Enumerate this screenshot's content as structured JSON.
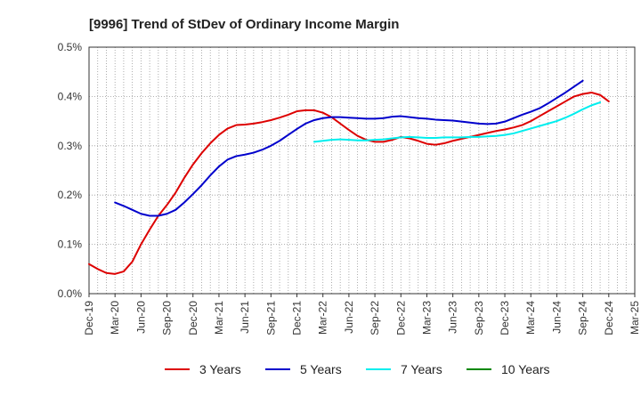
{
  "chart_data": {
    "type": "line",
    "title": "[9996]  Trend of StDev of Ordinary Income Margin",
    "xlabel": "",
    "ylabel": "",
    "ylim": [
      0,
      0.5
    ],
    "y_ticks": [
      0,
      0.1,
      0.2,
      0.3,
      0.4,
      0.5
    ],
    "y_tick_labels": [
      "0.0%",
      "0.1%",
      "0.2%",
      "0.3%",
      "0.4%",
      "0.5%"
    ],
    "x_tick_labels": [
      "Dec-19",
      "Mar-20",
      "Jun-20",
      "Sep-20",
      "Dec-20",
      "Mar-21",
      "Jun-21",
      "Sep-21",
      "Dec-21",
      "Mar-22",
      "Jun-22",
      "Sep-22",
      "Dec-22",
      "Mar-23",
      "Jun-23",
      "Sep-23",
      "Dec-23",
      "Mar-24",
      "Jun-24",
      "Sep-24",
      "Dec-24",
      "Mar-25"
    ],
    "x_unit": "month index from Dec-19",
    "grid": true,
    "legend_position": "bottom",
    "series": [
      {
        "name": "3 Years",
        "color": "#dd0000",
        "points": [
          [
            0,
            0.06
          ],
          [
            1,
            0.05
          ],
          [
            2,
            0.042
          ],
          [
            3,
            0.04
          ],
          [
            4,
            0.045
          ],
          [
            5,
            0.065
          ],
          [
            6,
            0.1
          ],
          [
            7,
            0.13
          ],
          [
            8,
            0.158
          ],
          [
            9,
            0.18
          ],
          [
            10,
            0.205
          ],
          [
            11,
            0.235
          ],
          [
            12,
            0.262
          ],
          [
            13,
            0.285
          ],
          [
            14,
            0.305
          ],
          [
            15,
            0.322
          ],
          [
            16,
            0.335
          ],
          [
            17,
            0.342
          ],
          [
            18,
            0.343
          ],
          [
            19,
            0.345
          ],
          [
            20,
            0.348
          ],
          [
            21,
            0.352
          ],
          [
            22,
            0.357
          ],
          [
            23,
            0.363
          ],
          [
            24,
            0.37
          ],
          [
            25,
            0.372
          ],
          [
            26,
            0.372
          ],
          [
            27,
            0.367
          ],
          [
            28,
            0.358
          ],
          [
            29,
            0.345
          ],
          [
            30,
            0.332
          ],
          [
            31,
            0.32
          ],
          [
            32,
            0.312
          ],
          [
            33,
            0.308
          ],
          [
            34,
            0.308
          ],
          [
            35,
            0.312
          ],
          [
            36,
            0.318
          ],
          [
            37,
            0.315
          ],
          [
            38,
            0.31
          ],
          [
            39,
            0.304
          ],
          [
            40,
            0.302
          ],
          [
            41,
            0.305
          ],
          [
            42,
            0.31
          ],
          [
            43,
            0.314
          ],
          [
            44,
            0.318
          ],
          [
            45,
            0.322
          ],
          [
            46,
            0.326
          ],
          [
            47,
            0.33
          ],
          [
            48,
            0.333
          ],
          [
            49,
            0.337
          ],
          [
            50,
            0.342
          ],
          [
            51,
            0.35
          ],
          [
            52,
            0.36
          ],
          [
            53,
            0.37
          ],
          [
            54,
            0.38
          ],
          [
            55,
            0.39
          ],
          [
            56,
            0.4
          ],
          [
            57,
            0.405
          ],
          [
            58,
            0.408
          ],
          [
            59,
            0.403
          ],
          [
            60,
            0.39
          ]
        ]
      },
      {
        "name": "5 Years",
        "color": "#0000cc",
        "points": [
          [
            3,
            0.185
          ],
          [
            4,
            0.178
          ],
          [
            5,
            0.17
          ],
          [
            6,
            0.162
          ],
          [
            7,
            0.158
          ],
          [
            8,
            0.158
          ],
          [
            9,
            0.162
          ],
          [
            10,
            0.17
          ],
          [
            11,
            0.185
          ],
          [
            12,
            0.202
          ],
          [
            13,
            0.22
          ],
          [
            14,
            0.24
          ],
          [
            15,
            0.258
          ],
          [
            16,
            0.272
          ],
          [
            17,
            0.279
          ],
          [
            18,
            0.282
          ],
          [
            19,
            0.286
          ],
          [
            20,
            0.292
          ],
          [
            21,
            0.3
          ],
          [
            22,
            0.31
          ],
          [
            23,
            0.322
          ],
          [
            24,
            0.334
          ],
          [
            25,
            0.345
          ],
          [
            26,
            0.352
          ],
          [
            27,
            0.356
          ],
          [
            28,
            0.358
          ],
          [
            29,
            0.358
          ],
          [
            30,
            0.357
          ],
          [
            31,
            0.356
          ],
          [
            32,
            0.355
          ],
          [
            33,
            0.355
          ],
          [
            34,
            0.356
          ],
          [
            35,
            0.359
          ],
          [
            36,
            0.36
          ],
          [
            37,
            0.358
          ],
          [
            38,
            0.356
          ],
          [
            39,
            0.355
          ],
          [
            40,
            0.353
          ],
          [
            41,
            0.352
          ],
          [
            42,
            0.351
          ],
          [
            43,
            0.349
          ],
          [
            44,
            0.347
          ],
          [
            45,
            0.345
          ],
          [
            46,
            0.344
          ],
          [
            47,
            0.345
          ],
          [
            48,
            0.349
          ],
          [
            49,
            0.356
          ],
          [
            50,
            0.363
          ],
          [
            51,
            0.369
          ],
          [
            52,
            0.376
          ],
          [
            53,
            0.386
          ],
          [
            54,
            0.397
          ],
          [
            55,
            0.408
          ],
          [
            56,
            0.42
          ],
          [
            57,
            0.432
          ]
        ]
      },
      {
        "name": "7 Years",
        "color": "#00eeee",
        "points": [
          [
            26,
            0.308
          ],
          [
            27,
            0.31
          ],
          [
            28,
            0.312
          ],
          [
            29,
            0.313
          ],
          [
            30,
            0.312
          ],
          [
            31,
            0.311
          ],
          [
            32,
            0.311
          ],
          [
            33,
            0.312
          ],
          [
            34,
            0.313
          ],
          [
            35,
            0.315
          ],
          [
            36,
            0.317
          ],
          [
            37,
            0.318
          ],
          [
            38,
            0.317
          ],
          [
            39,
            0.316
          ],
          [
            40,
            0.316
          ],
          [
            41,
            0.317
          ],
          [
            42,
            0.317
          ],
          [
            43,
            0.317
          ],
          [
            44,
            0.318
          ],
          [
            45,
            0.318
          ],
          [
            46,
            0.319
          ],
          [
            47,
            0.32
          ],
          [
            48,
            0.322
          ],
          [
            49,
            0.325
          ],
          [
            50,
            0.33
          ],
          [
            51,
            0.335
          ],
          [
            52,
            0.34
          ],
          [
            53,
            0.345
          ],
          [
            54,
            0.35
          ],
          [
            55,
            0.357
          ],
          [
            56,
            0.365
          ],
          [
            57,
            0.374
          ],
          [
            58,
            0.382
          ],
          [
            59,
            0.388
          ]
        ]
      },
      {
        "name": "10 Years",
        "color": "#008800",
        "points": []
      }
    ]
  }
}
